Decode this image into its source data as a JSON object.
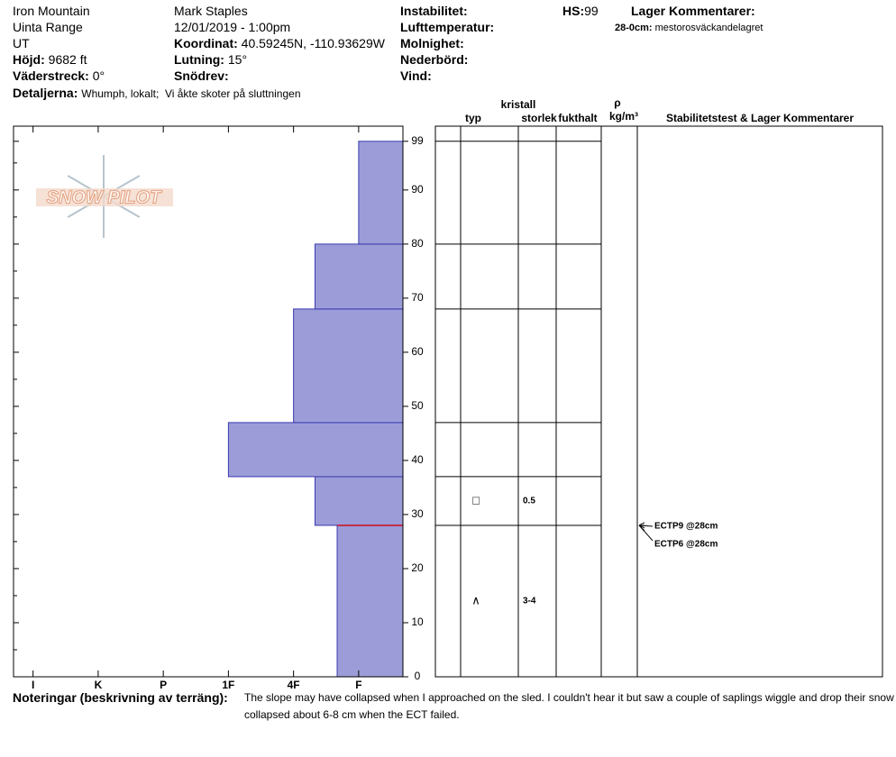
{
  "header": {
    "location": "Iron Mountain",
    "range": "Uinta Range",
    "state": "UT",
    "elevation": {
      "label": "Höjd:",
      "value": "9682 ft"
    },
    "aspect": {
      "label": "Väderstreck:",
      "value": "0°"
    },
    "details": {
      "label": "Detaljerna:",
      "value": "Whumph, lokalt;  Vi åkte skoter på sluttningen"
    },
    "observer": "Mark Staples",
    "datetime": "12/01/2019 - 1:00pm",
    "coordinates": {
      "label": "Koordinat:",
      "value": "40.59245N, -110.93629W"
    },
    "slope": {
      "label": "Lutning:",
      "value": "15°"
    },
    "wind_loading": {
      "label": "Snödrev:"
    },
    "instability": {
      "label": "Instabilitet:"
    },
    "air_temp": {
      "label": "Lufttemperatur:"
    },
    "sky": {
      "label": "Molnighet:"
    },
    "precip": {
      "label": "Nederbörd:"
    },
    "wind": {
      "label": "Vind:"
    },
    "hs": {
      "label": "HS:",
      "value": 99
    },
    "layer_comments": {
      "label": "Lager Kommentarer:",
      "items": [
        {
          "range": "28-0cm:",
          "text": "mestorosväckandelagret"
        }
      ]
    }
  },
  "profile": {
    "logo": "SNOW PILOT",
    "hardness_lim": [
      0.32,
      6.3
    ],
    "hardness_ticks": [
      {
        "value": 6,
        "label": "I"
      },
      {
        "value": 5,
        "label": "K"
      },
      {
        "value": 4,
        "label": "P"
      },
      {
        "value": 3,
        "label": "1F"
      },
      {
        "value": 2,
        "label": "4F"
      },
      {
        "value": 1,
        "label": "F"
      }
    ],
    "height_lim": [
      0,
      101.8
    ],
    "height_ticks": [
      0,
      10,
      20,
      30,
      40,
      50,
      60,
      70,
      80,
      90,
      99
    ],
    "height_minor_ticks": [
      5,
      15,
      25,
      35,
      45,
      55,
      65,
      75,
      85,
      95
    ],
    "layer_color": "#9c9cd8",
    "layer_edge_color": "#3a3ab0",
    "weak_layer_color": "#c0304a",
    "layers": [
      {
        "bottom": 0,
        "top": 28,
        "hardness": 1.33,
        "grain_type": "∧",
        "grain_size": "3-4"
      },
      {
        "bottom": 28,
        "top": 37,
        "hardness": 1.67,
        "grain_type": "□",
        "grain_size": "0.5"
      },
      {
        "bottom": 37,
        "top": 47,
        "hardness": 3
      },
      {
        "bottom": 47,
        "top": 68,
        "hardness": 2
      },
      {
        "bottom": 68,
        "top": 80,
        "hardness": 1.67
      },
      {
        "bottom": 80,
        "top": 99,
        "hardness": 1
      }
    ],
    "columns": {
      "type": "typ",
      "crystal": "kristall",
      "size": "storlek",
      "moisture": "fukthalt",
      "density_symbol": "ρ",
      "density_unit": "kg/m³",
      "tests": "Stabilitetstest & Lager Kommentarer"
    },
    "tests": [
      {
        "label": "ECTP9 @28cm",
        "depth": 28
      },
      {
        "label": "ECTP6 @28cm",
        "depth": 28
      }
    ]
  },
  "notes": {
    "label": "Noteringar (beskrivning av terräng):",
    "lines": [
      "The slope may have collapsed when I approached on the sled. I couldn't hear it but saw a couple of saplings wiggle and drop their snow",
      "collapsed about 6-8 cm when the ECT failed."
    ]
  }
}
